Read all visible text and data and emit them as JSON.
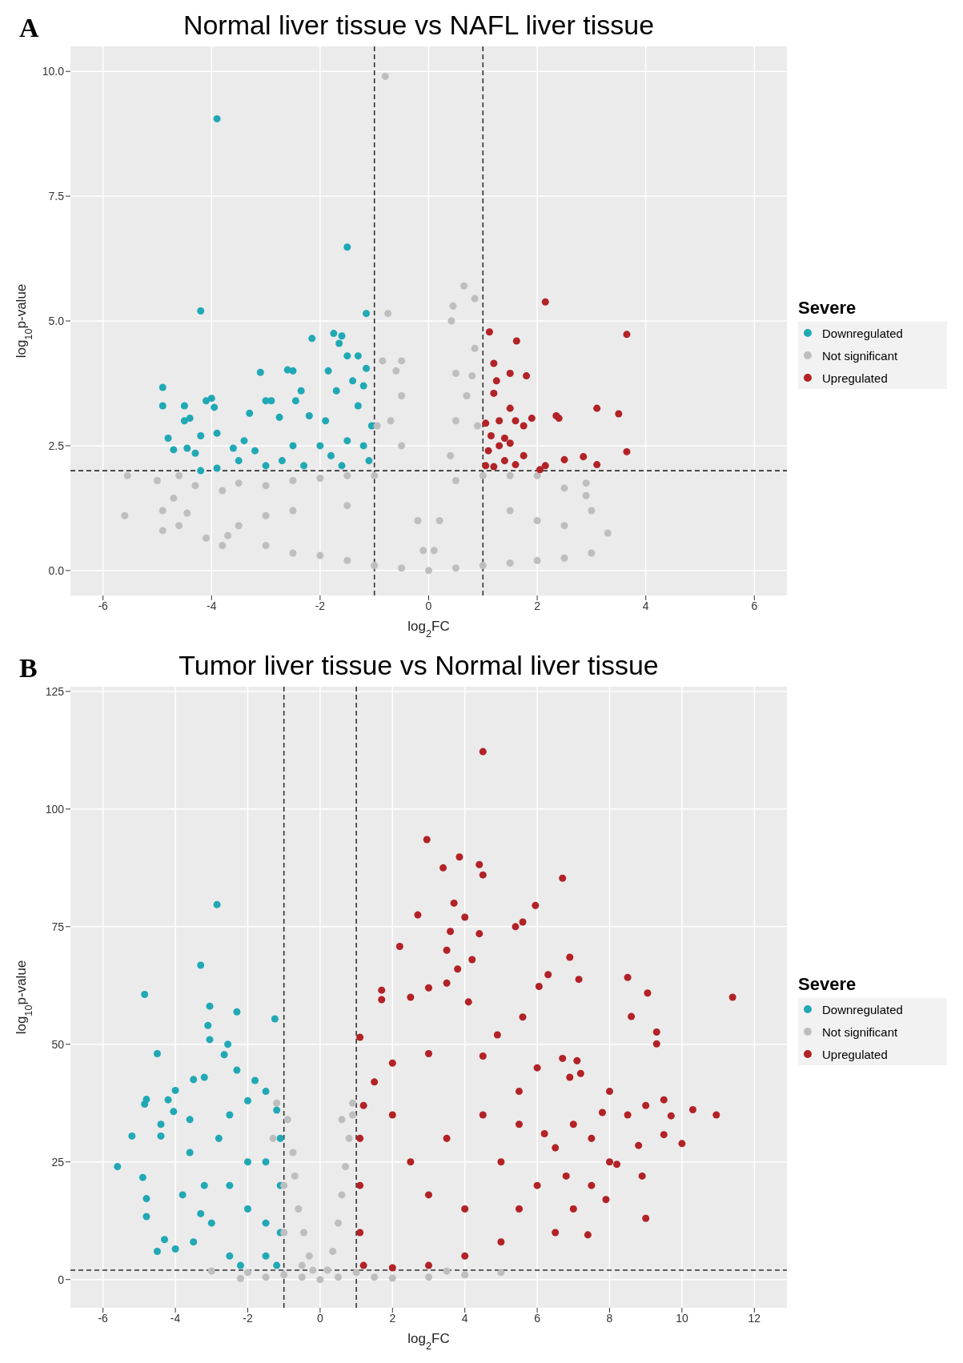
{
  "chart_data": [
    {
      "type": "scatter",
      "title": "Normal liver tissue vs NAFL liver tissue",
      "xlabel": "log$_{2}$FC",
      "ylabel": "log$_{10}$p-value",
      "legend_title": "Severe",
      "annotations": [
        "A"
      ],
      "legend": "right",
      "grid": true,
      "marker": "circle",
      "xlim": [
        -6.6,
        6.6
      ],
      "xticks": [
        -6,
        -4,
        -2,
        0,
        2,
        4,
        6
      ],
      "ylim": [
        -0.5,
        10.5
      ],
      "yticks": [
        {
          "value": 0,
          "label": "0.0"
        },
        {
          "value": 2.5,
          "label": "2.5"
        },
        {
          "value": 5,
          "label": "5.0"
        },
        {
          "value": 7.5,
          "label": "7.5"
        },
        {
          "value": 10,
          "label": "10.0"
        }
      ],
      "ref_lines": [
        {
          "axis": "x",
          "value": -1,
          "line_style": "dashed",
          "color": "#333333"
        },
        {
          "axis": "x",
          "value": 1,
          "line_style": "dashed",
          "color": "#333333"
        },
        {
          "axis": "y",
          "value": 2,
          "line_style": "dashed",
          "color": "#333333"
        }
      ],
      "series": [
        {
          "name": "Downregulated",
          "color": "#20a9b5",
          "x": [
            -3.9,
            -1.5,
            -4.2,
            -1.15,
            -1.75,
            -1.6,
            -2.15,
            -1.65,
            -1.5,
            -1.3,
            -1.85,
            -2.6,
            -3.1,
            -2.5,
            -4.9,
            -4.0,
            -4.1,
            -2.9,
            -3.0,
            -4.9,
            -4.5,
            -3.95,
            -1.2,
            -1.7,
            -1.4,
            -2.45,
            -2.35,
            -4.5,
            -4.4,
            -2.2,
            -2.75,
            -3.3,
            -1.9,
            -4.8,
            -4.2,
            -3.9,
            -4.45,
            -4.7,
            -4.3,
            -3.4,
            -3.6,
            -3.2,
            -2.5,
            -2.0,
            -1.5,
            -1.2,
            -1.1,
            -1.6,
            -2.3,
            -3.0,
            -3.9,
            -4.2,
            -1.05,
            -1.3,
            -1.8,
            -2.7,
            -3.5,
            -1.15
          ],
          "values": [
            9.05,
            6.48,
            5.2,
            5.15,
            4.75,
            4.7,
            4.65,
            4.55,
            4.3,
            4.3,
            4.0,
            4.02,
            3.97,
            4.0,
            3.67,
            3.45,
            3.4,
            3.4,
            3.4,
            3.3,
            3.3,
            3.27,
            3.7,
            3.6,
            3.8,
            3.4,
            3.6,
            3.0,
            3.05,
            3.1,
            3.07,
            3.15,
            3.0,
            2.65,
            2.7,
            2.75,
            2.45,
            2.42,
            2.35,
            2.6,
            2.45,
            2.4,
            2.5,
            2.5,
            2.6,
            2.5,
            2.2,
            2.1,
            2.1,
            2.1,
            2.05,
            2.0,
            2.9,
            3.3,
            2.3,
            2.2,
            2.2,
            4.05
          ]
        },
        {
          "name": "Not significant",
          "color": "#bebebe",
          "x": [
            -0.8,
            0.65,
            0.85,
            -0.75,
            0.45,
            0.42,
            0.85,
            -0.85,
            -0.5,
            0.5,
            0.8,
            -0.6,
            0.7,
            -0.5,
            -0.7,
            0.5,
            -0.95,
            0.9,
            -0.5,
            0.4,
            -5.55,
            -5.0,
            -4.6,
            -5.6,
            -4.9,
            -4.7,
            -4.9,
            -4.45,
            -4.6,
            -4.1,
            -4.3,
            -3.8,
            -3.5,
            -3.0,
            -2.5,
            -2.0,
            -1.5,
            -1.0,
            -3.5,
            -3.8,
            -3.0,
            -2.5,
            -2.0,
            -1.5,
            -1.0,
            -0.5,
            0,
            0.5,
            1.0,
            1.5,
            2.0,
            2.5,
            3.0,
            3.3,
            3.0,
            2.9,
            2.9,
            2.5,
            2.0,
            1.5,
            1.0,
            0.5,
            0.2,
            -0.2,
            -0.1,
            0.1,
            -2.5,
            -1.5,
            2.0,
            1.5,
            -3.0,
            2.5,
            -3.7
          ],
          "values": [
            9.9,
            5.7,
            5.45,
            5.15,
            5.3,
            5.0,
            4.45,
            4.2,
            4.2,
            3.95,
            3.9,
            4.0,
            3.5,
            3.5,
            3.0,
            3.0,
            2.9,
            2.9,
            2.5,
            2.3,
            1.9,
            1.8,
            1.9,
            1.1,
            0.8,
            1.45,
            1.2,
            1.15,
            0.9,
            0.65,
            1.7,
            1.6,
            1.75,
            1.7,
            1.8,
            1.85,
            1.9,
            1.9,
            0.9,
            0.5,
            0.5,
            0.35,
            0.3,
            0.2,
            0.1,
            0.05,
            0,
            0.05,
            0.1,
            0.15,
            0.2,
            0.25,
            0.35,
            0.75,
            1.2,
            1.5,
            1.75,
            1.65,
            1.9,
            1.9,
            1.9,
            1.8,
            1.0,
            1.0,
            0.4,
            0.4,
            1.2,
            1.3,
            1.0,
            1.2,
            1.1,
            0.9,
            0.7
          ]
        },
        {
          "name": "Upregulated",
          "color": "#b22226",
          "x": [
            2.15,
            3.65,
            1.12,
            1.62,
            1.2,
            1.5,
            1.8,
            1.25,
            1.2,
            3.1,
            3.5,
            1.5,
            2.35,
            2.4,
            1.9,
            1.05,
            1.3,
            1.6,
            1.75,
            1.15,
            1.4,
            1.3,
            1.1,
            1.5,
            3.65,
            2.85,
            2.5,
            1.75,
            3.1,
            2.05,
            2.15,
            1.6,
            1.2,
            1.4,
            1.05
          ],
          "values": [
            5.38,
            4.73,
            4.78,
            4.6,
            4.15,
            3.95,
            3.9,
            3.8,
            3.55,
            3.25,
            3.14,
            3.25,
            3.1,
            3.05,
            3.05,
            2.95,
            3.0,
            3.0,
            2.9,
            2.7,
            2.65,
            2.5,
            2.4,
            2.55,
            2.38,
            2.28,
            2.22,
            2.3,
            2.12,
            2.02,
            2.1,
            2.12,
            2.08,
            2.2,
            2.1
          ]
        }
      ]
    },
    {
      "type": "scatter",
      "title": "Tumor liver tissue vs Normal liver tissue",
      "xlabel": "log$_{2}$FC",
      "ylabel": "log$_{10}$p-value",
      "legend_title": "Severe",
      "annotations": [
        "B"
      ],
      "legend": "right",
      "grid": true,
      "marker": "circle",
      "xlim": [
        -6.9,
        12.9
      ],
      "xticks": [
        -6,
        -4,
        -2,
        0,
        2,
        4,
        6,
        8,
        10,
        12
      ],
      "ylim": [
        -6,
        126
      ],
      "yticks": [
        0,
        25,
        50,
        75,
        100,
        125
      ],
      "ref_lines": [
        {
          "axis": "x",
          "value": -1,
          "line_style": "dashed",
          "color": "#333333"
        },
        {
          "axis": "x",
          "value": 1,
          "line_style": "dashed",
          "color": "#333333"
        },
        {
          "axis": "y",
          "value": 2,
          "line_style": "dashed",
          "color": "#333333"
        }
      ],
      "series": [
        {
          "name": "Downregulated",
          "color": "#20a9b5",
          "x": [
            -2.85,
            -3.3,
            -4.85,
            -3.05,
            -2.3,
            -1.25,
            -3.1,
            -3.05,
            -2.55,
            -4.5,
            -2.65,
            -2.3,
            -3.2,
            -3.5,
            -1.8,
            -4.0,
            -4.2,
            -4.85,
            -4.8,
            -4.05,
            -3.6,
            -5.2,
            -4.4,
            -4.4,
            -5.6,
            -4.9,
            -4.8,
            -4.8,
            -4.5,
            -4.3,
            -4.0,
            -3.6,
            -3.2,
            -2.8,
            -2.5,
            -2.0,
            -1.5,
            -1.2,
            -1.5,
            -2.0,
            -2.5,
            -3.0,
            -3.5,
            -2.5,
            -1.5,
            -1.1,
            -1.1,
            -1.1,
            -2.0,
            -1.5,
            -3.8,
            -3.3,
            -2.2,
            -1.2
          ],
          "values": [
            79.7,
            66.8,
            60.6,
            58.1,
            56.9,
            55.4,
            54,
            51,
            50,
            48,
            47.8,
            44.5,
            43,
            42.5,
            42.3,
            40.2,
            38.2,
            37.3,
            38.3,
            35.7,
            34,
            30.5,
            33,
            30.5,
            24,
            21.7,
            17.2,
            13.4,
            6,
            8.5,
            6.5,
            27,
            20,
            30,
            35,
            38,
            40,
            36,
            25,
            25,
            20,
            12,
            8,
            5,
            5,
            10,
            20,
            30,
            15,
            12,
            18,
            14,
            3,
            3
          ]
        },
        {
          "name": "Not significant",
          "color": "#bebebe",
          "x": [
            -1.2,
            -1.3,
            -0.9,
            -0.75,
            -0.7,
            -0.6,
            -0.45,
            -0.3,
            -0.2,
            0,
            0.2,
            0.35,
            0.5,
            0.6,
            0.7,
            0.8,
            0.9,
            0.9,
            0.6,
            -1.0,
            -1.0,
            -0.5,
            -2.0,
            -3.0,
            -1.5,
            -2.2,
            1.5,
            2.0,
            3.0,
            4.0,
            5.0,
            3.5,
            1.0,
            -1.0,
            0.5,
            -0.5
          ],
          "values": [
            37.5,
            30,
            34,
            27,
            22,
            15,
            10,
            5,
            2,
            0,
            2,
            6,
            12,
            18,
            24,
            30,
            35,
            37.5,
            34,
            10,
            20,
            3,
            1.5,
            1.8,
            0.5,
            0.2,
            0.5,
            0.3,
            0.5,
            1.0,
            1.5,
            1.8,
            1.5,
            1.0,
            0.5,
            0.5
          ]
        },
        {
          "name": "Upregulated",
          "color": "#b22226",
          "x": [
            4.5,
            2.95,
            3.4,
            3.85,
            4.4,
            4.5,
            6.7,
            3.7,
            5.95,
            4.0,
            2.7,
            4.4,
            5.4,
            5.6,
            3.6,
            6.9,
            2.2,
            3.5,
            3.8,
            4.2,
            6.3,
            7.15,
            8.5,
            9.05,
            11.4,
            6.05,
            3.0,
            3.5,
            1.7,
            1.7,
            2.5,
            4.1,
            5.6,
            8.6,
            9.3,
            9.3,
            1.1,
            4.9,
            6.0,
            6.7,
            7.1,
            7.2,
            6.9,
            8.0,
            2.0,
            3.0,
            4.5,
            5.5,
            9.5,
            9.0,
            9.7,
            10.3,
            10.95,
            10.0,
            9.5,
            8.8,
            8.9,
            9.0,
            7.4,
            7.9,
            7.5,
            8.0,
            8.5,
            7.5,
            6.5,
            6.0,
            5.5,
            6.5,
            5.0,
            4.0,
            3.0,
            2.0,
            1.2,
            1.1,
            1.1,
            1.1,
            1.2,
            1.5,
            2.0,
            2.5,
            3.0,
            3.5,
            4.0,
            4.5,
            5.0,
            5.5,
            6.2,
            7.0,
            7.8,
            7.0,
            8.2,
            6.8
          ],
          "values": [
            112.2,
            93.5,
            87.5,
            89.8,
            88.2,
            86,
            85.3,
            80,
            79.5,
            77,
            77.5,
            73.5,
            75,
            76,
            74,
            68.5,
            70.8,
            70,
            66,
            68,
            64.8,
            63.8,
            64.2,
            60.9,
            60,
            62.3,
            62,
            63,
            61.5,
            59.5,
            60,
            59,
            55.8,
            55.9,
            52.6,
            50.1,
            51.5,
            52,
            45,
            47,
            46.5,
            43.8,
            43,
            40,
            46,
            48,
            47.5,
            40,
            38.2,
            37,
            34.8,
            36.1,
            35,
            28.9,
            30.8,
            28.5,
            22,
            13,
            9.5,
            17,
            20,
            25,
            35,
            30,
            28,
            20,
            15,
            10,
            8,
            5,
            3,
            2.5,
            3,
            10,
            20,
            30,
            37,
            42,
            35,
            25,
            18,
            30,
            15,
            35,
            25,
            33,
            31,
            33,
            35.5,
            15,
            24.5,
            22
          ]
        }
      ]
    }
  ]
}
